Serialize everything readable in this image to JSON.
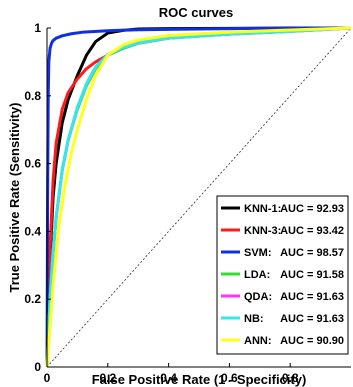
{
  "chart_data": {
    "type": "line",
    "title": "ROC curves",
    "xlabel": "False Positive Rate (1 - Specificity)",
    "ylabel": "True Positive Rate (Sensitivity)",
    "xlim": [
      0,
      1
    ],
    "ylim": [
      0,
      1
    ],
    "xticks": [
      "0",
      "0.2",
      "0.4",
      "0.6",
      "0.8"
    ],
    "yticks": [
      "0",
      "0.2",
      "0.4",
      "0.6",
      "0.8",
      "1"
    ],
    "grid": false,
    "legend_position": "bottom-right",
    "diagonal_reference": true,
    "series": [
      {
        "name": "KNN-1:",
        "auc_label": "AUC = 92.93",
        "color": "#000000",
        "x": [
          0,
          0.005,
          0.01,
          0.02,
          0.03,
          0.05,
          0.07,
          0.1,
          0.13,
          0.16,
          0.2,
          0.25,
          0.3,
          0.4,
          0.6,
          0.8,
          1.0
        ],
        "y": [
          0,
          0.18,
          0.32,
          0.5,
          0.6,
          0.72,
          0.79,
          0.86,
          0.92,
          0.96,
          0.985,
          0.993,
          0.997,
          0.998,
          0.999,
          1.0,
          1.0
        ]
      },
      {
        "name": "KNN-3:",
        "auc_label": "AUC = 93.42",
        "color": "#ff1a1a",
        "x": [
          0,
          0.005,
          0.01,
          0.02,
          0.03,
          0.05,
          0.07,
          0.1,
          0.13,
          0.16,
          0.2,
          0.25,
          0.3,
          0.4,
          0.6,
          0.8,
          1.0
        ],
        "y": [
          0,
          0.2,
          0.35,
          0.55,
          0.66,
          0.76,
          0.81,
          0.85,
          0.88,
          0.9,
          0.92,
          0.94,
          0.955,
          0.97,
          0.985,
          0.993,
          1.0
        ]
      },
      {
        "name": "SVM:",
        "auc_label": "AUC = 98.57",
        "color": "#1030e0",
        "x": [
          0,
          0.002,
          0.004,
          0.006,
          0.01,
          0.015,
          0.02,
          0.03,
          0.05,
          0.08,
          0.12,
          0.2,
          0.3,
          0.5,
          0.7,
          1.0
        ],
        "y": [
          0,
          0.5,
          0.8,
          0.9,
          0.94,
          0.955,
          0.963,
          0.97,
          0.977,
          0.983,
          0.988,
          0.992,
          0.995,
          0.997,
          0.999,
          1.0
        ]
      },
      {
        "name": "LDA:",
        "auc_label": "AUC = 91.58",
        "color": "#33dd33",
        "x": [
          0,
          0.005,
          0.01,
          0.02,
          0.03,
          0.05,
          0.07,
          0.1,
          0.13,
          0.16,
          0.2,
          0.25,
          0.3,
          0.4,
          0.6,
          0.8,
          1.0
        ],
        "y": [
          0,
          0.1,
          0.2,
          0.34,
          0.44,
          0.58,
          0.67,
          0.76,
          0.83,
          0.88,
          0.92,
          0.94,
          0.955,
          0.97,
          0.982,
          0.99,
          1.0
        ]
      },
      {
        "name": "QDA:",
        "auc_label": "AUC = 91.63",
        "color": "#ff33ff",
        "x": [
          0,
          0.005,
          0.01,
          0.02,
          0.03,
          0.05,
          0.07,
          0.1,
          0.13,
          0.16,
          0.2,
          0.25,
          0.3,
          0.4,
          0.6,
          0.8,
          1.0
        ],
        "y": [
          0,
          0.1,
          0.2,
          0.34,
          0.44,
          0.58,
          0.67,
          0.765,
          0.835,
          0.885,
          0.922,
          0.942,
          0.956,
          0.97,
          0.982,
          0.99,
          1.0
        ]
      },
      {
        "name": "NB:",
        "auc_label": "AUC = 91.63",
        "color": "#33e8e8",
        "x": [
          0,
          0.005,
          0.01,
          0.02,
          0.03,
          0.05,
          0.07,
          0.1,
          0.13,
          0.16,
          0.2,
          0.25,
          0.3,
          0.4,
          0.6,
          0.8,
          1.0
        ],
        "y": [
          0,
          0.1,
          0.2,
          0.34,
          0.44,
          0.58,
          0.67,
          0.765,
          0.835,
          0.885,
          0.922,
          0.942,
          0.956,
          0.97,
          0.982,
          0.99,
          1.0
        ]
      },
      {
        "name": "ANN:",
        "auc_label": "AUC = 90.90",
        "color": "#ffff1a",
        "x": [
          0,
          0.005,
          0.01,
          0.02,
          0.04,
          0.06,
          0.08,
          0.1,
          0.13,
          0.16,
          0.2,
          0.25,
          0.3,
          0.4,
          0.6,
          0.8,
          1.0
        ],
        "y": [
          0,
          0.06,
          0.12,
          0.24,
          0.42,
          0.54,
          0.63,
          0.7,
          0.79,
          0.86,
          0.92,
          0.95,
          0.965,
          0.978,
          0.988,
          0.994,
          1.0
        ]
      }
    ]
  }
}
